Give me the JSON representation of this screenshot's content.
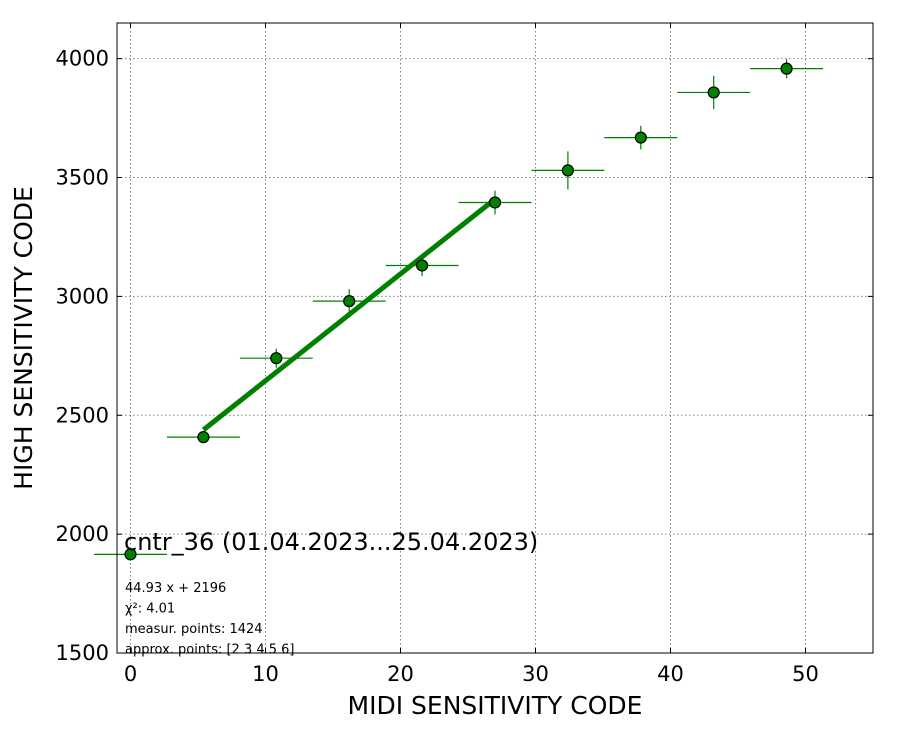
{
  "chart_data": {
    "type": "scatter",
    "title": "cntr_36 (01.04.2023...25.04.2023)",
    "xlabel": "MIDI SENSITIVITY CODE",
    "ylabel": "HIGH SENSITIVITY CODE",
    "xlim": [
      -1,
      55
    ],
    "ylim": [
      1500,
      4150
    ],
    "xticks": [
      0,
      10,
      20,
      30,
      40,
      50
    ],
    "yticks": [
      1500,
      2000,
      2500,
      3000,
      3500,
      4000
    ],
    "grid": true,
    "points": [
      {
        "x": 0,
        "y": 1915,
        "xerr": 2.7,
        "yerr": 0
      },
      {
        "x": 5.4,
        "y": 2408,
        "xerr": 2.7,
        "yerr": 20
      },
      {
        "x": 10.8,
        "y": 2740,
        "xerr": 2.7,
        "yerr": 40
      },
      {
        "x": 16.2,
        "y": 2980,
        "xerr": 2.7,
        "yerr": 50
      },
      {
        "x": 21.6,
        "y": 3130,
        "xerr": 2.7,
        "yerr": 45
      },
      {
        "x": 27.0,
        "y": 3395,
        "xerr": 2.7,
        "yerr": 50
      },
      {
        "x": 32.4,
        "y": 3530,
        "xerr": 2.7,
        "yerr": 80
      },
      {
        "x": 37.8,
        "y": 3668,
        "xerr": 2.7,
        "yerr": 50
      },
      {
        "x": 43.2,
        "y": 3858,
        "xerr": 2.7,
        "yerr": 70
      },
      {
        "x": 48.6,
        "y": 3958,
        "xerr": 2.7,
        "yerr": 40
      }
    ],
    "fit": {
      "slope": 44.93,
      "intercept": 2196,
      "x_range": [
        5.4,
        27.0
      ]
    },
    "info_lines": [
      "44.93 x + 2196",
      "χ²: 4.01",
      "measur. points: 1424",
      "approx. points: [2 3 4 5 6]"
    ],
    "colors": {
      "marker": "#008000",
      "marker_edge": "#000000",
      "errorbar": "#008000",
      "fit_line": "#008000",
      "grid": "#808080"
    }
  }
}
